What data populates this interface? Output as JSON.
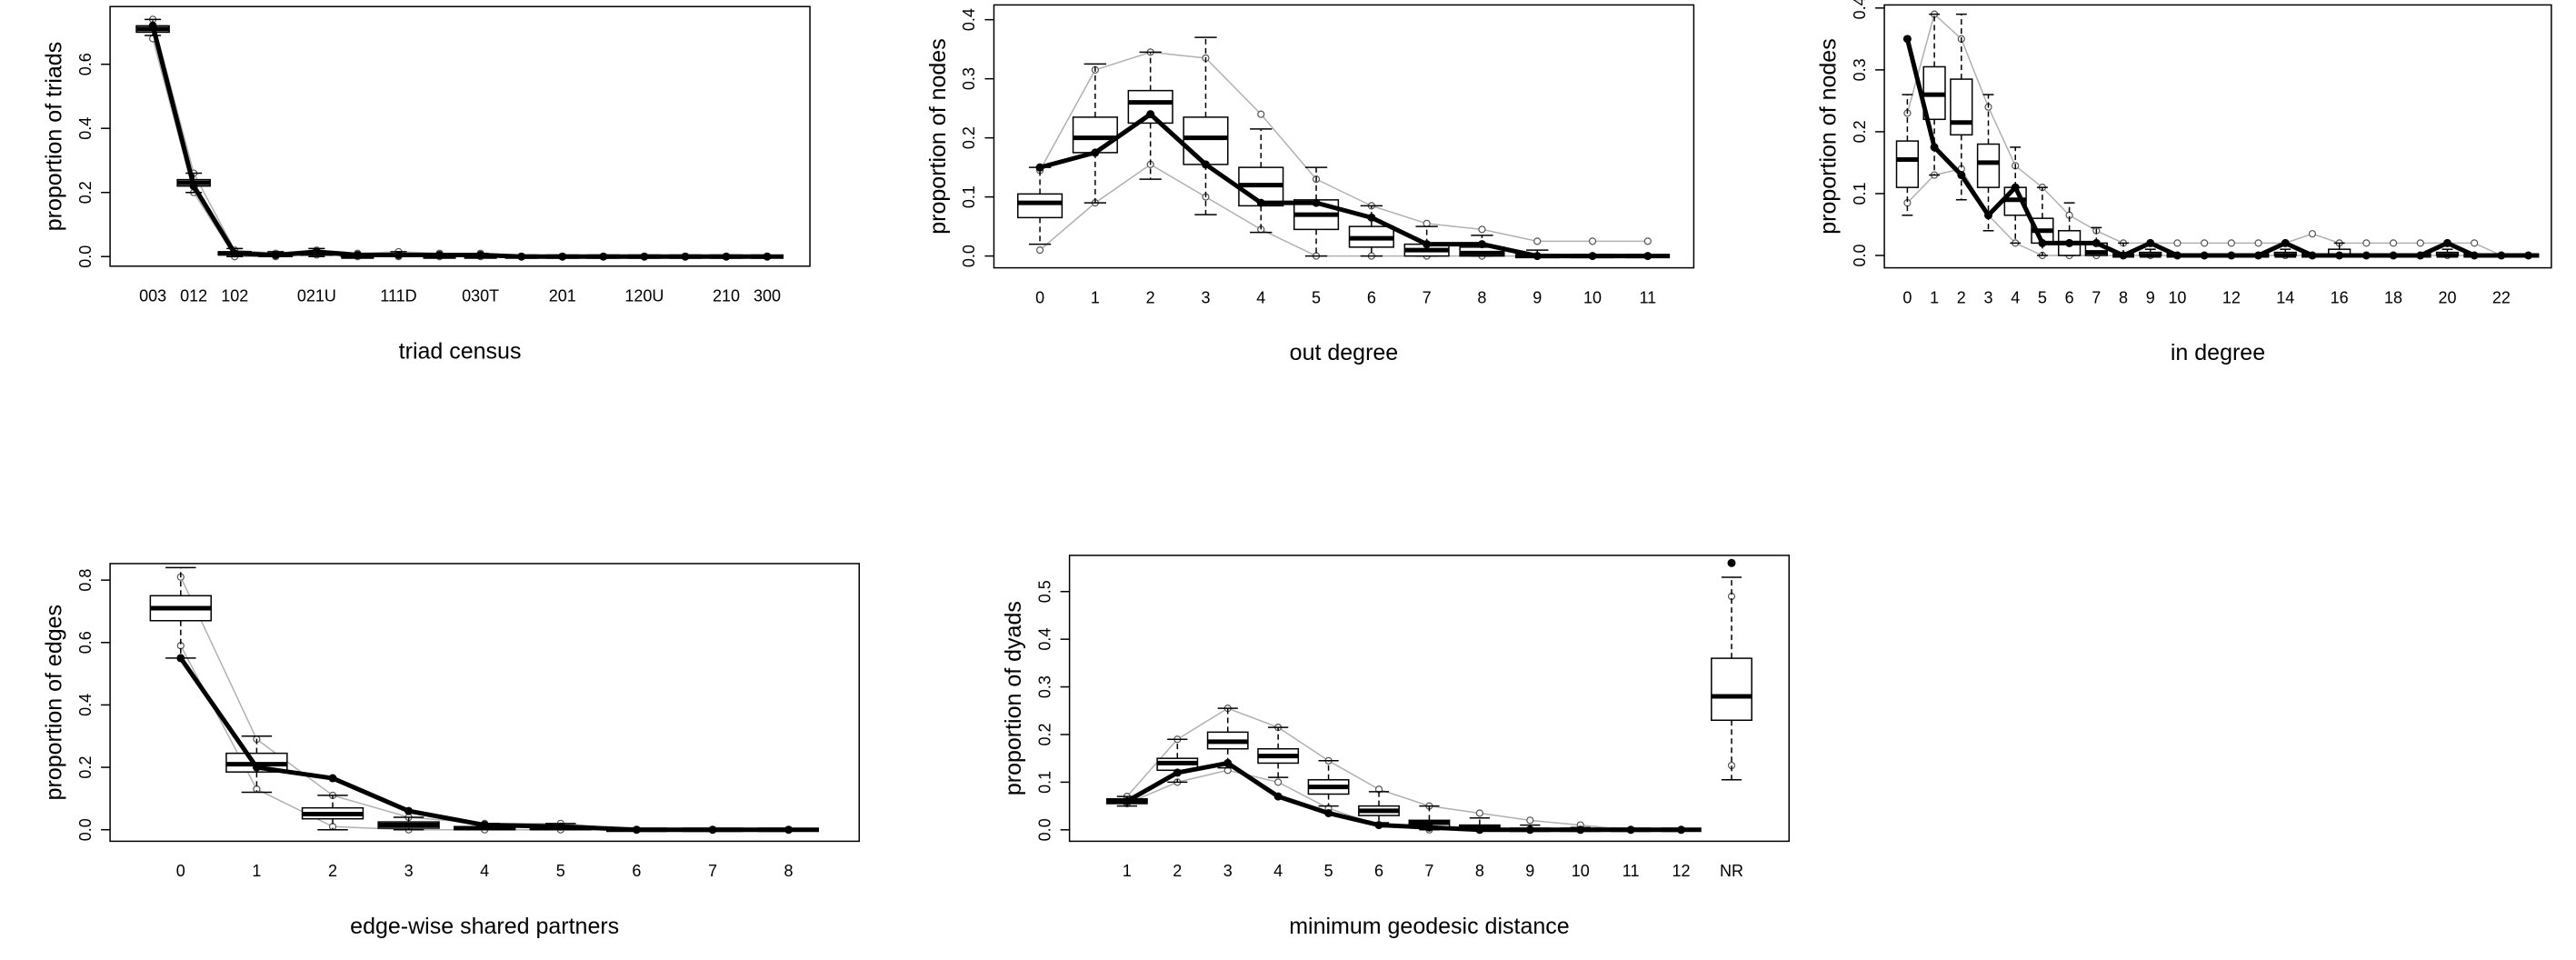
{
  "chart_data": [
    {
      "type": "boxplot",
      "xlabel": "triad census",
      "ylabel": "proportion of triads",
      "categories": [
        "003",
        "012",
        "102",
        null,
        "021U",
        null,
        "111D",
        null,
        "030T",
        null,
        "201",
        null,
        "120U",
        null,
        "210",
        "300"
      ],
      "ylim": [
        -0.03,
        0.78
      ],
      "yticks": [
        {
          "value": 0,
          "label": "0.0"
        },
        0.2,
        0.4,
        0.6
      ],
      "connect_last": true,
      "whisker_low": [
        0.69,
        0.2,
        0,
        0,
        0,
        0,
        0,
        0,
        0,
        0,
        0,
        0,
        0,
        0,
        0,
        0
      ],
      "q1": [
        0.7,
        0.22,
        0.005,
        0,
        0.005,
        0,
        0,
        0,
        0,
        0,
        0,
        0,
        0,
        0,
        0,
        0
      ],
      "median": [
        0.71,
        0.23,
        0.01,
        0.005,
        0.01,
        0,
        0.005,
        0,
        0,
        0,
        0,
        0,
        0,
        0,
        0,
        0
      ],
      "q3": [
        0.72,
        0.24,
        0.015,
        0.01,
        0.015,
        0.005,
        0.01,
        0.005,
        0.005,
        0,
        0,
        0,
        0,
        0,
        0,
        0
      ],
      "whisker_high": [
        0.74,
        0.26,
        0.025,
        0.015,
        0.025,
        0.01,
        0.015,
        0.01,
        0.01,
        0,
        0,
        0,
        0,
        0,
        0,
        0
      ],
      "observed": [
        0.72,
        0.22,
        0.01,
        0.005,
        0.015,
        0.005,
        0.005,
        0.005,
        0.005,
        0,
        0,
        0,
        0,
        0,
        0,
        0
      ],
      "sim_min": [
        0.68,
        0.2,
        0,
        0,
        0.005,
        0,
        0,
        0,
        0,
        0,
        0,
        0,
        0,
        0,
        0,
        0
      ],
      "sim_max": [
        0.74,
        0.26,
        0.02,
        0.01,
        0.02,
        0.01,
        0.015,
        0.01,
        0.01,
        0,
        0,
        0,
        0,
        0,
        0,
        0
      ]
    },
    {
      "type": "boxplot",
      "xlabel": "out degree",
      "ylabel": "proportion of nodes",
      "categories": [
        "0",
        "1",
        "2",
        "3",
        "4",
        "5",
        "6",
        "7",
        "8",
        "9",
        "10",
        "11"
      ],
      "ylim": [
        -0.02,
        0.425
      ],
      "yticks": [
        {
          "value": 0,
          "label": "0.0"
        },
        0.1,
        0.2,
        0.3,
        0.4
      ],
      "connect_last": true,
      "whisker_low": [
        0.02,
        0.09,
        0.13,
        0.07,
        0.04,
        0,
        0,
        0,
        0,
        0,
        0,
        0
      ],
      "q1": [
        0.065,
        0.175,
        0.225,
        0.155,
        0.085,
        0.045,
        0.015,
        0,
        0,
        0,
        0,
        0
      ],
      "median": [
        0.09,
        0.2,
        0.26,
        0.2,
        0.12,
        0.07,
        0.03,
        0.01,
        0.005,
        0,
        0,
        0
      ],
      "q3": [
        0.105,
        0.235,
        0.28,
        0.235,
        0.15,
        0.095,
        0.05,
        0.02,
        0.015,
        0,
        0,
        0
      ],
      "whisker_high": [
        0.15,
        0.325,
        0.345,
        0.37,
        0.215,
        0.15,
        0.085,
        0.05,
        0.035,
        0.01,
        0,
        0
      ],
      "observed": [
        0.15,
        0.175,
        0.24,
        0.155,
        0.09,
        0.09,
        0.065,
        0.02,
        0.02,
        0,
        0,
        0
      ],
      "sim_min": [
        0.01,
        0.09,
        0.155,
        0.1,
        0.045,
        0,
        0,
        0,
        0,
        0,
        0,
        0
      ],
      "sim_max": [
        0.145,
        0.315,
        0.345,
        0.335,
        0.24,
        0.13,
        0.085,
        0.055,
        0.045,
        0.025,
        0.025,
        0.025
      ]
    },
    {
      "type": "boxplot",
      "xlabel": "in degree",
      "ylabel": "proportion of nodes",
      "categories": [
        "0",
        "1",
        "2",
        "3",
        "4",
        "5",
        "6",
        "7",
        "8",
        "9",
        "10",
        null,
        "12",
        null,
        "14",
        null,
        "16",
        null,
        "18",
        null,
        "20",
        null,
        "22",
        null
      ],
      "ylim": [
        -0.02,
        0.405
      ],
      "yticks": [
        {
          "value": 0,
          "label": "0.0"
        },
        0.1,
        0.2,
        0.3,
        0.4
      ],
      "connect_last": true,
      "whisker_low": [
        0.065,
        0.13,
        0.09,
        0.04,
        0.02,
        0,
        0,
        0,
        0,
        0,
        0,
        0,
        0,
        0,
        0,
        0,
        0,
        0,
        0,
        0,
        0,
        0,
        0,
        0
      ],
      "q1": [
        0.11,
        0.22,
        0.195,
        0.11,
        0.065,
        0.02,
        0,
        0,
        0,
        0,
        0,
        0,
        0,
        0,
        0,
        0,
        0,
        0,
        0,
        0,
        0,
        0,
        0,
        0
      ],
      "median": [
        0.155,
        0.26,
        0.215,
        0.15,
        0.09,
        0.04,
        0.02,
        0.005,
        0,
        0,
        0,
        0,
        0,
        0,
        0,
        0,
        0,
        0,
        0,
        0,
        0,
        0,
        0,
        0
      ],
      "q3": [
        0.185,
        0.305,
        0.285,
        0.18,
        0.11,
        0.06,
        0.04,
        0.02,
        0,
        0.005,
        0,
        0,
        0,
        0,
        0.005,
        0,
        0.01,
        0,
        0,
        0,
        0.005,
        0,
        0,
        0
      ],
      "whisker_high": [
        0.26,
        0.39,
        0.39,
        0.26,
        0.175,
        0.11,
        0.085,
        0.045,
        0.02,
        0.01,
        0,
        0,
        0,
        0,
        0.01,
        0,
        0.02,
        0,
        0,
        0,
        0.01,
        0,
        0,
        0
      ],
      "observed": [
        0.35,
        0.175,
        0.13,
        0.065,
        0.11,
        0.02,
        0.02,
        0.02,
        0,
        0.02,
        0,
        0,
        0,
        0,
        0.02,
        0,
        0,
        0,
        0,
        0,
        0.02,
        0,
        0,
        0
      ],
      "sim_min": [
        0.085,
        0.13,
        0.14,
        0.065,
        0.02,
        0,
        0,
        0,
        0,
        0,
        0,
        0,
        0,
        0,
        0,
        0,
        0,
        0,
        0,
        0,
        0,
        0,
        0,
        0
      ],
      "sim_max": [
        0.23,
        0.39,
        0.35,
        0.24,
        0.145,
        0.11,
        0.065,
        0.04,
        0.02,
        0.02,
        0.02,
        0.02,
        0.02,
        0.02,
        0.02,
        0.035,
        0.02,
        0.02,
        0.02,
        0.02,
        0.02,
        0.02,
        0,
        0
      ]
    },
    {
      "type": "boxplot",
      "xlabel": "edge-wise shared partners",
      "ylabel": "proportion of edges",
      "categories": [
        "0",
        "1",
        "2",
        "3",
        "4",
        "5",
        "6",
        "7",
        "8"
      ],
      "ylim": [
        -0.037,
        0.853
      ],
      "yticks": [
        {
          "value": 0,
          "label": "0.0"
        },
        0.2,
        0.4,
        0.6,
        0.8
      ],
      "connect_last": true,
      "whisker_low": [
        0.55,
        0.12,
        0,
        0,
        0,
        0,
        0,
        0,
        0
      ],
      "q1": [
        0.67,
        0.185,
        0.035,
        0.005,
        0,
        0,
        0,
        0,
        0
      ],
      "median": [
        0.71,
        0.21,
        0.05,
        0.015,
        0.005,
        0.005,
        0,
        0,
        0
      ],
      "q3": [
        0.75,
        0.245,
        0.07,
        0.025,
        0.01,
        0.01,
        0,
        0,
        0
      ],
      "whisker_high": [
        0.84,
        0.3,
        0.11,
        0.04,
        0.02,
        0.02,
        0,
        0,
        0
      ],
      "observed": [
        0.55,
        0.2,
        0.165,
        0.06,
        0.015,
        0.01,
        0,
        0,
        0
      ],
      "sim_min": [
        0.59,
        0.13,
        0.01,
        0,
        0,
        0,
        0,
        0,
        0
      ],
      "sim_max": [
        0.81,
        0.29,
        0.11,
        0.04,
        0.02,
        0.02,
        0,
        0,
        0
      ]
    },
    {
      "type": "boxplot",
      "xlabel": "minimum geodesic distance",
      "ylabel": "proportion of dyads",
      "categories": [
        "1",
        "2",
        "3",
        "4",
        "5",
        "6",
        "7",
        "8",
        "9",
        "10",
        "11",
        "12",
        "NR"
      ],
      "ylim": [
        -0.024,
        0.576
      ],
      "yticks": [
        {
          "value": 0,
          "label": "0.0"
        },
        0.1,
        0.2,
        0.3,
        0.4,
        0.5
      ],
      "connect_last": false,
      "whisker_low": [
        0.05,
        0.1,
        0.13,
        0.11,
        0.05,
        0.015,
        0,
        0,
        0,
        0,
        0,
        0,
        0.105
      ],
      "q1": [
        0.055,
        0.125,
        0.17,
        0.14,
        0.075,
        0.03,
        0.005,
        0,
        0,
        0,
        0,
        0,
        0.23
      ],
      "median": [
        0.06,
        0.14,
        0.185,
        0.155,
        0.09,
        0.04,
        0.015,
        0.005,
        0,
        0,
        0,
        0,
        0.28
      ],
      "q3": [
        0.065,
        0.15,
        0.205,
        0.17,
        0.105,
        0.05,
        0.02,
        0.01,
        0,
        0,
        0,
        0,
        0.36
      ],
      "whisker_high": [
        0.07,
        0.19,
        0.255,
        0.215,
        0.145,
        0.08,
        0.05,
        0.025,
        0.01,
        0.005,
        0,
        0,
        0.53
      ],
      "observed": [
        0.06,
        0.12,
        0.14,
        0.07,
        0.035,
        0.01,
        0.005,
        0,
        0,
        0,
        0,
        0,
        0.56
      ],
      "sim_min": [
        0.055,
        0.1,
        0.125,
        0.1,
        0.045,
        0.01,
        0,
        0,
        0,
        0,
        0,
        0,
        0.135
      ],
      "sim_max": [
        0.07,
        0.19,
        0.255,
        0.215,
        0.145,
        0.085,
        0.05,
        0.035,
        0.02,
        0.01,
        0,
        0,
        0.49
      ]
    }
  ]
}
